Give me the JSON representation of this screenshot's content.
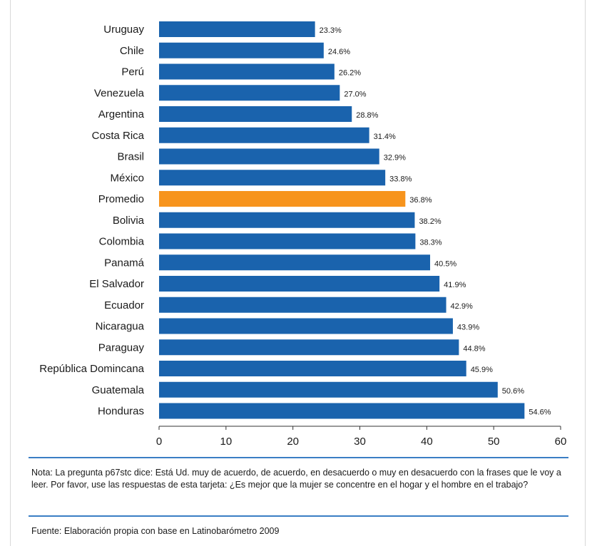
{
  "chart_data": {
    "type": "bar",
    "orientation": "horizontal",
    "categories": [
      "Uruguay",
      "Chile",
      "Perú",
      "Venezuela",
      "Argentina",
      "Costa Rica",
      "Brasil",
      "México",
      "Promedio",
      "Bolivia",
      "Colombia",
      "Panamá",
      "El Salvador",
      "Ecuador",
      "Nicaragua",
      "Paraguay",
      "República Domincana",
      "Guatemala",
      "Honduras"
    ],
    "values": [
      23.3,
      24.6,
      26.2,
      27.0,
      28.8,
      31.4,
      32.9,
      33.8,
      36.8,
      38.2,
      38.3,
      40.5,
      41.9,
      42.9,
      43.9,
      44.8,
      45.9,
      50.6,
      54.6
    ],
    "value_labels": [
      "23.3%",
      "24.6%",
      "26.2%",
      "27.0%",
      "28.8%",
      "31.4%",
      "32.9%",
      "33.8%",
      "36.8%",
      "38.2%",
      "38.3%",
      "40.5%",
      "41.9%",
      "42.9%",
      "43.9%",
      "44.8%",
      "45.9%",
      "50.6%",
      "54.6%"
    ],
    "highlight_category": "Promedio",
    "xlim": [
      0,
      60
    ],
    "xticks": [
      0,
      10,
      20,
      30,
      40,
      50,
      60
    ],
    "grid": false,
    "colors": {
      "bar": "#1a63ad",
      "highlight": "#f7941d",
      "axis": "#333333",
      "rule": "#3a7ec4"
    }
  },
  "footer": {
    "note": "Nota: La pregunta p67stc dice: Está Ud. muy de acuerdo, de acuerdo, en desacuerdo o muy en desacuerdo con la frases que le voy a leer. Por favor, use las respuestas de esta tarjeta: ¿Es mejor que la mujer se concentre en el hogar y el hombre en el trabajo?",
    "source": "Fuente: Elaboración propia con base en Latinobarómetro 2009"
  }
}
